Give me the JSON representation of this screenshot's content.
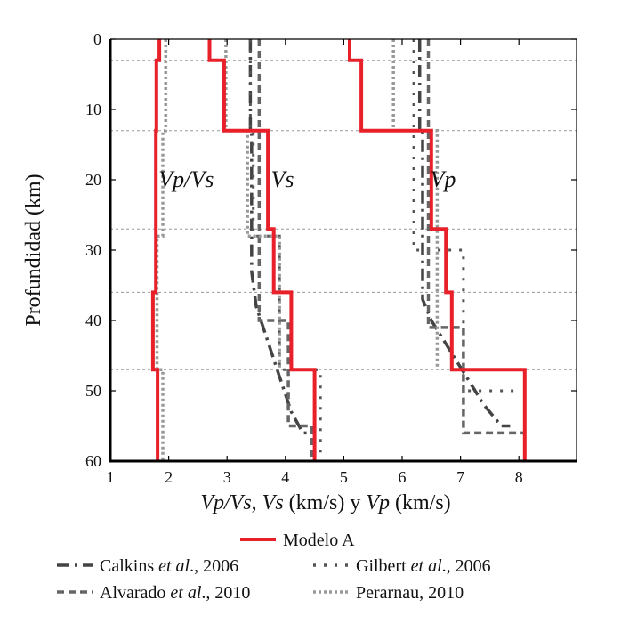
{
  "chart_data": {
    "type": "line",
    "orientation": "depth-profile",
    "title": "",
    "xlabel": "Vp/Vs, Vs (km/s) y Vp (km/s)",
    "xlabel_parts": [
      {
        "text": "Vp/Vs",
        "italic": true
      },
      {
        "text": ", ",
        "italic": false
      },
      {
        "text": "Vs",
        "italic": true
      },
      {
        "text": " (km/s) y ",
        "italic": false
      },
      {
        "text": "Vp",
        "italic": true
      },
      {
        "text": " (km/s)",
        "italic": false
      }
    ],
    "ylabel": "Profundidad (km)",
    "xlim": [
      1,
      8.4
    ],
    "ylim": [
      60,
      0
    ],
    "xticks": [
      1,
      2,
      3,
      4,
      5,
      6,
      7,
      8
    ],
    "yticks": [
      0,
      10,
      20,
      30,
      40,
      50,
      60
    ],
    "reference_depths": [
      3,
      13,
      27,
      36,
      47
    ],
    "annotations": [
      {
        "text": "Vp/Vs",
        "x": 2.3,
        "y": 20
      },
      {
        "text": "Vs",
        "x": 3.95,
        "y": 20
      },
      {
        "text": "Vp",
        "x": 6.7,
        "y": 20
      }
    ],
    "series": [
      {
        "name": "Modelo A",
        "style": "solid",
        "color": "#e8202a",
        "group": "Vp/Vs",
        "points": [
          [
            1.84,
            0
          ],
          [
            1.84,
            3
          ],
          [
            1.79,
            3
          ],
          [
            1.79,
            13
          ],
          [
            1.78,
            13
          ],
          [
            1.78,
            36
          ],
          [
            1.73,
            36
          ],
          [
            1.73,
            47
          ],
          [
            1.81,
            47
          ],
          [
            1.81,
            60
          ]
        ]
      },
      {
        "name": "Modelo A",
        "style": "solid",
        "color": "#e8202a",
        "group": "Vs",
        "points": [
          [
            2.7,
            0
          ],
          [
            2.7,
            3
          ],
          [
            2.95,
            3
          ],
          [
            2.95,
            13
          ],
          [
            3.7,
            13
          ],
          [
            3.7,
            27
          ],
          [
            3.8,
            27
          ],
          [
            3.8,
            36
          ],
          [
            4.1,
            36
          ],
          [
            4.1,
            47
          ],
          [
            4.5,
            47
          ],
          [
            4.5,
            60
          ]
        ]
      },
      {
        "name": "Modelo A",
        "style": "solid",
        "color": "#e8202a",
        "group": "Vp",
        "points": [
          [
            5.1,
            0
          ],
          [
            5.1,
            3
          ],
          [
            5.3,
            3
          ],
          [
            5.3,
            13
          ],
          [
            6.5,
            13
          ],
          [
            6.5,
            27
          ],
          [
            6.75,
            27
          ],
          [
            6.75,
            36
          ],
          [
            6.85,
            36
          ],
          [
            6.85,
            47
          ],
          [
            8.1,
            47
          ],
          [
            8.1,
            60
          ]
        ]
      },
      {
        "name": "Calkins et al., 2006",
        "style": "dashdot",
        "color": "#444444",
        "group": "Vs",
        "points": [
          [
            3.4,
            0
          ],
          [
            3.4,
            13
          ],
          [
            3.42,
            13
          ],
          [
            3.42,
            33
          ],
          [
            3.5,
            38
          ],
          [
            3.7,
            43
          ],
          [
            3.9,
            48
          ],
          [
            4.1,
            53
          ],
          [
            4.3,
            56
          ],
          [
            4.5,
            56
          ]
        ]
      },
      {
        "name": "Calkins et al., 2006",
        "style": "dashdot",
        "color": "#444444",
        "group": "Vp",
        "points": [
          [
            6.3,
            0
          ],
          [
            6.3,
            13
          ],
          [
            6.35,
            13
          ],
          [
            6.35,
            37
          ],
          [
            6.5,
            40
          ],
          [
            6.8,
            44
          ],
          [
            7.1,
            48
          ],
          [
            7.4,
            52
          ],
          [
            7.7,
            55
          ],
          [
            7.85,
            55
          ]
        ]
      },
      {
        "name": "Gilbert et al., 2006",
        "style": "dotted-sparse",
        "color": "#555555",
        "group": "Vs",
        "points": [
          [
            3.4,
            0
          ],
          [
            3.4,
            13
          ],
          [
            3.45,
            13
          ],
          [
            3.45,
            28
          ],
          [
            3.9,
            28
          ],
          [
            3.9,
            47
          ],
          [
            4.6,
            47
          ],
          [
            4.6,
            60
          ]
        ]
      },
      {
        "name": "Gilbert et al., 2006",
        "style": "dotted-sparse",
        "color": "#555555",
        "group": "Vp",
        "points": [
          [
            6.2,
            0
          ],
          [
            6.2,
            30
          ],
          [
            7.05,
            30
          ],
          [
            7.05,
            50
          ],
          [
            8.0,
            50
          ]
        ]
      },
      {
        "name": "Alvarado et al., 2010",
        "style": "dashed",
        "color": "#666666",
        "group": "Vs",
        "points": [
          [
            3.55,
            0
          ],
          [
            3.55,
            40
          ],
          [
            4.05,
            40
          ],
          [
            4.05,
            55
          ],
          [
            4.45,
            55
          ],
          [
            4.45,
            60
          ]
        ]
      },
      {
        "name": "Alvarado et al., 2010",
        "style": "dashed",
        "color": "#666666",
        "group": "Vp",
        "points": [
          [
            6.45,
            0
          ],
          [
            6.45,
            41
          ],
          [
            7.05,
            41
          ],
          [
            7.05,
            56
          ],
          [
            8.1,
            56
          ]
        ]
      },
      {
        "name": "Perarnau, 2010",
        "style": "dotted",
        "color": "#999999",
        "group": "Vp/Vs",
        "points": [
          [
            1.95,
            0
          ],
          [
            1.95,
            13
          ],
          [
            1.9,
            13
          ],
          [
            1.9,
            28
          ],
          [
            1.8,
            28
          ],
          [
            1.8,
            47
          ],
          [
            1.9,
            47
          ],
          [
            1.9,
            60
          ]
        ]
      },
      {
        "name": "Perarnau, 2010",
        "style": "dotted",
        "color": "#999999",
        "group": "Vs",
        "points": [
          [
            2.98,
            0
          ],
          [
            2.98,
            13
          ],
          [
            3.35,
            13
          ],
          [
            3.35,
            28
          ],
          [
            3.9,
            28
          ],
          [
            3.9,
            47
          ]
        ]
      },
      {
        "name": "Perarnau, 2010",
        "style": "dotted",
        "color": "#999999",
        "group": "Vp",
        "points": [
          [
            5.85,
            0
          ],
          [
            5.85,
            13
          ],
          [
            6.6,
            13
          ],
          [
            6.6,
            47
          ]
        ]
      }
    ],
    "legend": {
      "placement": "bottom",
      "entries": [
        {
          "label_parts": [
            {
              "text": "Modelo A",
              "italic": false
            }
          ],
          "style": "solid",
          "color": "#e8202a"
        },
        {
          "label_parts": [
            {
              "text": "Calkins ",
              "italic": false
            },
            {
              "text": "et al",
              "italic": true
            },
            {
              "text": "., 2006",
              "italic": false
            }
          ],
          "style": "dashdot",
          "color": "#444444"
        },
        {
          "label_parts": [
            {
              "text": "Gilbert ",
              "italic": false
            },
            {
              "text": "et al",
              "italic": true
            },
            {
              "text": "., 2006",
              "italic": false
            }
          ],
          "style": "dotted-sparse",
          "color": "#555555"
        },
        {
          "label_parts": [
            {
              "text": "Alvarado ",
              "italic": false
            },
            {
              "text": "et al",
              "italic": true
            },
            {
              "text": "., 2010",
              "italic": false
            }
          ],
          "style": "dashed",
          "color": "#666666"
        },
        {
          "label_parts": [
            {
              "text": "Perarnau, 2010",
              "italic": false
            }
          ],
          "style": "dotted",
          "color": "#999999"
        }
      ]
    }
  }
}
